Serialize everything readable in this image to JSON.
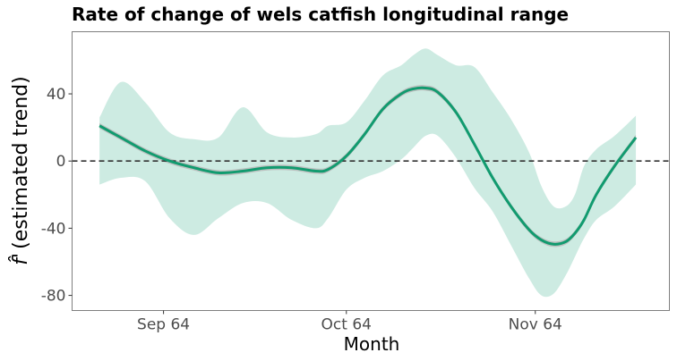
{
  "chart_data": {
    "type": "line",
    "title": "Rate of change of wels catfish longitudinal range",
    "xlabel": "Month",
    "ylabel": "f̂ ' (estimated trend)",
    "ylabel_parts": {
      "symbol": "f̂",
      "prime": "'",
      "rest": "(estimated trend)"
    },
    "x_ticks": [
      {
        "label": "Sep 64",
        "day": 13
      },
      {
        "label": "Oct 64",
        "day": 43
      },
      {
        "label": "Nov 64",
        "day": 74
      }
    ],
    "y_ticks": [
      40,
      0,
      -40,
      -80
    ],
    "ylim": [
      -89,
      77
    ],
    "xlim": [
      -2,
      96
    ],
    "x_units": "days since 1964-08-19",
    "reference_line": {
      "y": 0,
      "style": "dashed"
    },
    "grid": false,
    "colors": {
      "line": "#119b6f",
      "ribbon": "#cdebe2",
      "inner_ribbon": "#b9b9b9",
      "ref_line": "#333333",
      "frame": "#7f7f7f"
    },
    "series": [
      {
        "x": [
          2.5,
          6,
          10,
          14,
          18,
          22,
          26,
          30,
          34,
          38,
          40,
          43,
          46,
          49,
          52,
          54,
          56,
          58,
          61,
          64,
          67,
          70,
          73,
          75,
          77,
          79,
          80.5,
          82,
          84,
          87,
          90.5
        ],
        "values": [
          21,
          14,
          6,
          0,
          -4,
          -7,
          -6,
          -4,
          -4,
          -6,
          -5,
          3,
          16,
          31,
          40,
          43,
          43.5,
          41,
          29,
          10,
          -10,
          -27,
          -41,
          -47,
          -49.5,
          -48,
          -43,
          -35,
          -20,
          -3,
          14
        ],
        "lower": [
          -14,
          -10,
          -12,
          -34,
          -44,
          -34,
          -25,
          -25,
          -35,
          -40,
          -34,
          -17,
          -10,
          -6,
          1,
          8,
          15,
          15,
          2,
          -16,
          -30,
          -50,
          -70,
          -80,
          -79,
          -68,
          -57,
          -46,
          -35,
          -27,
          -14
        ],
        "upper": [
          26,
          47,
          35,
          17,
          13,
          14,
          32,
          17,
          14,
          16,
          21,
          23,
          36,
          51,
          57,
          63,
          67,
          63,
          57,
          56,
          41,
          25,
          5,
          -15,
          -27,
          -27,
          -20,
          -3,
          7,
          15,
          27
        ]
      }
    ]
  }
}
